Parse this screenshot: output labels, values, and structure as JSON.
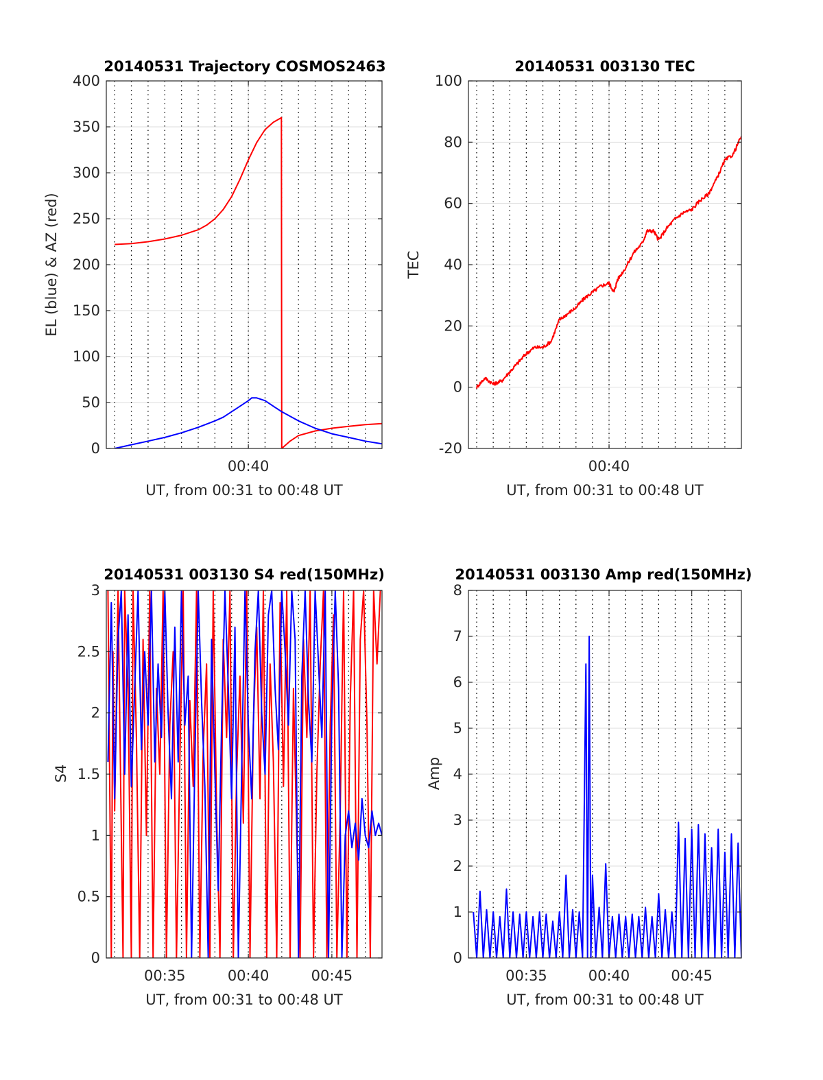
{
  "figure": {
    "background": "#ffffff",
    "grid_color": "#dedede",
    "minor_grid_color": "#000000",
    "axis_color": "#262626"
  },
  "chart_data": [
    {
      "type": "line",
      "title": "20140531 Trajectory COSMOS2463",
      "xlabel": "UT, from 00:31 to 00:48 UT",
      "ylabel": "EL (blue) & AZ (red)",
      "xlim": [
        31.5,
        48.0
      ],
      "ylim": [
        0,
        400
      ],
      "xticks": [
        40
      ],
      "xtick_labels": [
        "00:40"
      ],
      "yticks": [
        0,
        50,
        100,
        150,
        200,
        250,
        300,
        350,
        400
      ],
      "ytick_labels": [
        "0",
        "50",
        "100",
        "150",
        "200",
        "250",
        "300",
        "350",
        "400"
      ],
      "minor_x_grid": [
        32,
        33,
        34,
        35,
        36,
        37,
        38,
        39,
        40,
        41,
        42,
        43,
        44,
        45,
        46,
        47
      ],
      "grid": true,
      "noise": 0,
      "series": [
        {
          "color": "#ff0000",
          "x": [
            32.0,
            33.0,
            34.0,
            35.0,
            36.0,
            37.0,
            37.5,
            38.0,
            38.5,
            39.0,
            39.5,
            40.0,
            40.5,
            41.0,
            41.5,
            41.98,
            42.0,
            42.5,
            43.0,
            44.0,
            45.0,
            46.0,
            47.0,
            48.0
          ],
          "y": [
            222,
            223,
            225,
            228,
            232,
            238,
            243,
            250,
            260,
            274,
            293,
            314,
            333,
            347,
            355,
            360,
            0,
            8,
            14,
            19,
            22,
            24,
            26,
            27
          ]
        },
        {
          "color": "#0000ff",
          "x": [
            32.0,
            33.0,
            34.0,
            35.0,
            36.0,
            37.0,
            38.0,
            38.5,
            39.0,
            39.5,
            40.0,
            40.2,
            40.5,
            41.0,
            41.5,
            42.0,
            43.0,
            44.0,
            45.0,
            46.0,
            47.0,
            48.0
          ],
          "y": [
            0,
            4,
            8,
            12,
            17,
            23,
            30,
            34,
            40,
            46,
            52,
            55,
            55,
            52,
            46,
            40,
            30,
            22,
            16,
            12,
            8,
            5
          ]
        }
      ]
    },
    {
      "type": "line",
      "title": "20140531 003130 TEC",
      "xlabel": "UT, from 00:31 to 00:48 UT",
      "ylabel": "TEC",
      "xlim": [
        31.5,
        48.0
      ],
      "ylim": [
        -20,
        100
      ],
      "xticks": [
        40
      ],
      "xtick_labels": [
        "00:40"
      ],
      "yticks": [
        -20,
        0,
        20,
        40,
        60,
        80,
        100
      ],
      "ytick_labels": [
        "-20",
        "0",
        "20",
        "40",
        "60",
        "80",
        "100"
      ],
      "minor_x_grid": [
        32,
        33,
        34,
        35,
        36,
        37,
        38,
        39,
        40,
        41,
        42,
        43,
        44,
        45,
        46,
        47
      ],
      "grid": true,
      "noise": 0.6,
      "series": [
        {
          "color": "#ff0000",
          "x": [
            32.0,
            32.5,
            33.0,
            33.5,
            34.0,
            34.5,
            35.0,
            35.5,
            36.0,
            36.5,
            37.0,
            37.5,
            38.0,
            38.5,
            39.0,
            39.5,
            40.0,
            40.3,
            40.5,
            41.0,
            41.5,
            42.0,
            42.3,
            42.7,
            43.0,
            43.5,
            44.0,
            44.5,
            45.0,
            45.5,
            46.0,
            46.5,
            47.0,
            47.5,
            48.0
          ],
          "y": [
            0,
            3,
            1,
            2,
            5,
            8,
            11,
            13,
            13,
            15,
            22,
            24,
            26,
            29,
            31,
            33,
            34,
            31,
            35,
            39,
            44,
            47,
            51,
            51,
            48,
            52,
            55,
            57,
            58,
            61,
            63,
            68,
            74,
            76,
            82
          ]
        }
      ]
    },
    {
      "type": "line",
      "title": "20140531 003130 S4 red(150MHz)",
      "xlabel": "UT, from 00:31 to 00:48 UT",
      "ylabel": "S4",
      "xlim": [
        31.5,
        48.0
      ],
      "ylim": [
        0,
        3
      ],
      "xticks": [
        35,
        40,
        45
      ],
      "xtick_labels": [
        "00:35",
        "00:40",
        "00:45"
      ],
      "yticks": [
        0,
        0.5,
        1,
        1.5,
        2,
        2.5,
        3
      ],
      "ytick_labels": [
        "0",
        "0.5",
        "1",
        "1.5",
        "2",
        "2.5",
        "3"
      ],
      "minor_x_grid": [
        32,
        33,
        34,
        35,
        36,
        37,
        38,
        39,
        40,
        41,
        42,
        43,
        44,
        45,
        46,
        47
      ],
      "grid": true,
      "noise": 0,
      "series": [
        {
          "color": "#ff0000",
          "x": [
            31.6,
            31.8,
            31.9,
            32.0,
            32.2,
            32.5,
            32.6,
            32.8,
            33.0,
            33.1,
            33.3,
            33.5,
            33.7,
            33.9,
            34.1,
            34.3,
            34.5,
            34.7,
            34.9,
            35.1,
            35.3,
            35.5,
            35.7,
            35.9,
            36.1,
            36.3,
            36.5,
            36.7,
            36.9,
            37.1,
            37.3,
            37.5,
            37.7,
            37.9,
            38.1,
            38.3,
            38.5,
            38.7,
            38.9,
            39.1,
            39.3,
            39.5,
            39.7,
            39.9,
            40.1,
            40.3,
            40.5,
            40.7,
            40.9,
            41.1,
            41.3,
            41.5,
            41.7,
            41.9,
            42.1,
            42.3,
            42.5,
            42.7,
            42.9,
            43.1,
            43.3,
            43.5,
            43.7,
            43.9,
            44.1,
            44.3,
            44.5,
            44.7,
            44.9,
            45.1,
            45.3,
            45.5,
            45.7,
            45.9,
            46.1,
            46.3,
            46.5,
            46.7,
            46.9,
            47.1,
            47.3,
            47.5,
            47.7,
            47.9
          ],
          "y": [
            3.0,
            0.0,
            2.5,
            1.2,
            3.0,
            0.0,
            3.0,
            2.2,
            0.0,
            3.0,
            1.8,
            0.0,
            2.6,
            1.0,
            3.0,
            0.0,
            2.2,
            1.5,
            3.0,
            0.0,
            1.9,
            2.5,
            0.0,
            1.6,
            3.0,
            0.0,
            2.1,
            1.4,
            3.0,
            0.0,
            1.7,
            2.4,
            0.0,
            3.0,
            1.2,
            0.0,
            2.6,
            1.8,
            3.0,
            0.0,
            1.5,
            2.3,
            1.1,
            3.0,
            0.0,
            1.9,
            2.7,
            1.3,
            3.0,
            0.0,
            2.4,
            1.6,
            0.0,
            2.9,
            1.4,
            3.0,
            0.0,
            2.2,
            1.0,
            0.0,
            2.6,
            1.8,
            3.0,
            0.0,
            1.5,
            2.4,
            3.0,
            0.0,
            1.9,
            2.8,
            0.0,
            1.2,
            3.0,
            0.0,
            2.1,
            3.0,
            0.0,
            2.6,
            3.0,
            1.9,
            0.0,
            3.0,
            2.4,
            3.0
          ]
        },
        {
          "color": "#0000ff",
          "x": [
            31.6,
            31.8,
            32.0,
            32.2,
            32.4,
            32.6,
            32.8,
            33.0,
            33.2,
            33.4,
            33.6,
            33.8,
            34.0,
            34.2,
            34.4,
            34.6,
            34.8,
            35.0,
            35.2,
            35.4,
            35.6,
            35.8,
            36.0,
            36.2,
            36.4,
            36.6,
            36.8,
            37.0,
            37.2,
            37.4,
            37.6,
            37.8,
            38.0,
            38.2,
            38.4,
            38.6,
            38.8,
            39.0,
            39.2,
            39.4,
            39.6,
            39.8,
            40.0,
            40.2,
            40.4,
            40.6,
            40.8,
            41.0,
            41.2,
            41.4,
            41.6,
            41.8,
            42.0,
            42.2,
            42.4,
            42.6,
            42.8,
            43.0,
            43.2,
            43.4,
            43.6,
            43.8,
            44.0,
            44.2,
            44.4,
            44.6,
            44.8,
            45.0,
            45.2,
            45.4,
            45.6,
            45.8,
            46.0,
            46.2,
            46.4,
            46.6,
            46.8,
            47.0,
            47.2,
            47.4,
            47.6,
            47.8,
            48.0
          ],
          "y": [
            1.6,
            2.9,
            1.3,
            2.6,
            3.0,
            1.5,
            2.8,
            1.4,
            2.2,
            3.0,
            1.7,
            2.5,
            1.9,
            3.0,
            1.6,
            2.4,
            1.8,
            3.0,
            2.0,
            1.3,
            2.7,
            1.6,
            3.0,
            1.9,
            2.3,
            0.0,
            1.6,
            3.0,
            2.1,
            1.4,
            0.0,
            2.6,
            1.5,
            0.55,
            1.9,
            3.0,
            2.2,
            1.3,
            2.7,
            0.0,
            1.5,
            3.0,
            1.9,
            1.3,
            2.5,
            3.0,
            2.0,
            1.5,
            2.8,
            3.0,
            2.2,
            1.7,
            3.0,
            2.5,
            1.9,
            3.0,
            2.6,
            0.0,
            2.3,
            3.0,
            2.1,
            1.6,
            3.0,
            2.4,
            1.8,
            3.0,
            0.0,
            2.0,
            3.0,
            2.2,
            0.0,
            1.0,
            1.2,
            0.9,
            1.1,
            0.8,
            1.3,
            1.0,
            0.9,
            1.2,
            1.0,
            1.1,
            1.0
          ]
        }
      ]
    },
    {
      "type": "line",
      "title": "20140531 003130 Amp red(150MHz)",
      "xlabel": "UT, from 00:31 to 00:48 UT",
      "ylabel": "Amp",
      "xlim": [
        31.5,
        48.0
      ],
      "ylim": [
        0,
        8
      ],
      "xticks": [
        35,
        40,
        45
      ],
      "xtick_labels": [
        "00:35",
        "00:40",
        "00:45"
      ],
      "yticks": [
        0,
        1,
        2,
        3,
        4,
        5,
        6,
        7,
        8
      ],
      "ytick_labels": [
        "0",
        "1",
        "2",
        "3",
        "4",
        "5",
        "6",
        "7",
        "8"
      ],
      "minor_x_grid": [
        32,
        33,
        34,
        35,
        36,
        37,
        38,
        39,
        40,
        41,
        42,
        43,
        44,
        45,
        46,
        47
      ],
      "grid": true,
      "noise": 0,
      "series": [
        {
          "color": "#0000ff",
          "x": [
            31.8,
            32.0,
            32.2,
            32.4,
            32.6,
            32.8,
            33.0,
            33.2,
            33.4,
            33.6,
            33.8,
            34.0,
            34.2,
            34.4,
            34.6,
            34.8,
            35.0,
            35.2,
            35.4,
            35.6,
            35.8,
            36.0,
            36.2,
            36.4,
            36.6,
            36.8,
            37.0,
            37.2,
            37.4,
            37.6,
            37.8,
            38.0,
            38.2,
            38.4,
            38.6,
            38.7,
            38.8,
            38.9,
            39.0,
            39.2,
            39.4,
            39.6,
            39.8,
            40.0,
            40.2,
            40.4,
            40.6,
            40.8,
            41.0,
            41.2,
            41.4,
            41.6,
            41.8,
            42.0,
            42.2,
            42.4,
            42.6,
            42.8,
            43.0,
            43.2,
            43.4,
            43.6,
            43.8,
            44.0,
            44.2,
            44.4,
            44.6,
            44.8,
            45.0,
            45.2,
            45.4,
            45.6,
            45.8,
            46.0,
            46.2,
            46.4,
            46.6,
            46.8,
            47.0,
            47.2,
            47.4,
            47.6,
            47.8,
            48.0
          ],
          "y": [
            1.0,
            0.0,
            1.45,
            0.0,
            1.05,
            0.0,
            1.0,
            0.0,
            0.9,
            0.0,
            1.5,
            0.0,
            1.0,
            0.0,
            0.95,
            0.0,
            1.0,
            0.0,
            0.9,
            0.0,
            1.0,
            0.0,
            0.95,
            0.0,
            0.8,
            0.0,
            1.0,
            0.0,
            1.8,
            0.0,
            1.05,
            0.0,
            1.0,
            0.0,
            6.4,
            0.0,
            7.0,
            0.0,
            1.8,
            0.0,
            1.1,
            0.0,
            2.05,
            0.0,
            0.9,
            0.0,
            0.95,
            0.0,
            0.9,
            0.0,
            0.95,
            0.0,
            0.9,
            0.0,
            1.1,
            0.0,
            0.9,
            0.0,
            1.4,
            0.0,
            1.05,
            0.0,
            1.0,
            0.0,
            2.95,
            0.0,
            2.6,
            0.0,
            2.8,
            0.0,
            2.9,
            0.0,
            2.7,
            0.0,
            2.4,
            0.0,
            2.8,
            0.0,
            2.3,
            0.0,
            2.7,
            0.0,
            2.5,
            0.0
          ]
        }
      ]
    }
  ]
}
